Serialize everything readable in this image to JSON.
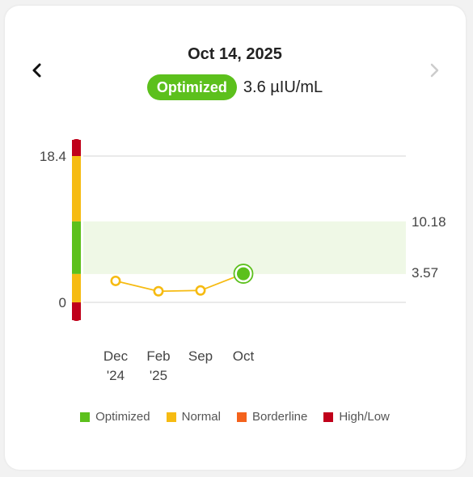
{
  "header": {
    "date": "Oct 14, 2025",
    "status_label": "Optimized",
    "value_text": "3.6 µIU/mL",
    "prev_icon": "chevron-left-icon",
    "next_icon": "chevron-right-icon"
  },
  "chart_data": {
    "type": "line",
    "y_ticks": [
      "18.4",
      "0"
    ],
    "ylim": [
      0,
      18.4
    ],
    "optimal_range": {
      "low": 3.57,
      "high": 10.18,
      "labels": [
        "10.18",
        "3.57"
      ]
    },
    "x_labels": [
      {
        "line1": "Dec",
        "line2": "'24"
      },
      {
        "line1": "Feb",
        "line2": "'25"
      },
      {
        "line1": "Sep",
        "line2": ""
      },
      {
        "line1": "Oct",
        "line2": ""
      }
    ],
    "series": [
      {
        "values": [
          2.7,
          1.4,
          1.5,
          3.6
        ]
      }
    ],
    "point_status": [
      "normal",
      "normal",
      "normal",
      "optimized"
    ],
    "range_bar": [
      "high_low",
      "normal",
      "optimized",
      "normal",
      "high_low"
    ],
    "grid": true
  },
  "legend": [
    {
      "label": "Optimized",
      "key": "optimized"
    },
    {
      "label": "Normal",
      "key": "normal"
    },
    {
      "label": "Borderline",
      "key": "borderline"
    },
    {
      "label": "High/Low",
      "key": "high_low"
    }
  ],
  "colors": {
    "optimized": "#5cc01c",
    "normal": "#f6bb12",
    "borderline": "#f4621c",
    "high_low": "#c0001a",
    "band": "#eff8e6",
    "grid": "#dddddd",
    "line": "#f6bb12"
  }
}
